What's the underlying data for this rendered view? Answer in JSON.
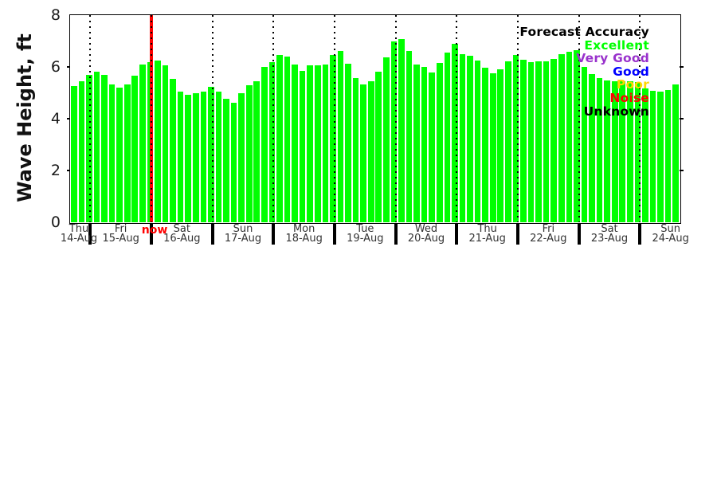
{
  "chart_data": {
    "type": "bar",
    "title": "",
    "ylabel": "Wave Height, ft",
    "xlabel": "",
    "ylim": [
      0,
      8
    ],
    "yticks": [
      0,
      2,
      4,
      6,
      8
    ],
    "grid": "vertical-dotted-day-boundaries",
    "bar_color": "#00ff00",
    "values": [
      5.25,
      5.45,
      5.7,
      5.82,
      5.7,
      5.32,
      5.2,
      5.32,
      5.66,
      6.1,
      6.2,
      6.24,
      6.07,
      5.54,
      5.05,
      4.92,
      5.0,
      5.06,
      5.23,
      5.05,
      4.77,
      4.62,
      4.97,
      5.29,
      5.45,
      6.0,
      6.2,
      6.45,
      6.41,
      6.1,
      5.85,
      6.05,
      6.05,
      6.08,
      6.45,
      6.61,
      6.13,
      5.58,
      5.33,
      5.45,
      5.82,
      6.38,
      7.0,
      7.07,
      6.61,
      6.1,
      6.01,
      5.8,
      6.15,
      6.54,
      6.88,
      6.49,
      6.44,
      6.26,
      5.97,
      5.75,
      5.9,
      6.21,
      6.45,
      6.28,
      6.17,
      6.21,
      6.23,
      6.3,
      6.5,
      6.59,
      6.64,
      5.99,
      5.71,
      5.58,
      5.49,
      5.46,
      5.44,
      5.46,
      5.41,
      5.17,
      5.08,
      5.05,
      5.1,
      5.33
    ],
    "x_day_labels": [
      {
        "day": "Thu",
        "date": "14-Aug"
      },
      {
        "day": "Fri",
        "date": "15-Aug"
      },
      {
        "day": "Sat",
        "date": "16-Aug"
      },
      {
        "day": "Sun",
        "date": "17-Aug"
      },
      {
        "day": "Mon",
        "date": "18-Aug"
      },
      {
        "day": "Tue",
        "date": "19-Aug"
      },
      {
        "day": "Wed",
        "date": "20-Aug"
      },
      {
        "day": "Thu",
        "date": "21-Aug"
      },
      {
        "day": "Fri",
        "date": "22-Aug"
      },
      {
        "day": "Sat",
        "date": "23-Aug"
      },
      {
        "day": "Sun",
        "date": "24-Aug"
      }
    ],
    "now_label": "now",
    "now_color": "#ff0000",
    "now_position": "boundary between 15-Aug and 16-Aug",
    "legend": {
      "title": "Forecast Accuracy",
      "title_color": "#000000",
      "position": "top-right",
      "entries": [
        {
          "label": "Excellent",
          "color": "#00ff00"
        },
        {
          "label": "Very Good",
          "color": "#9932cc"
        },
        {
          "label": "Good",
          "color": "#0000ff"
        },
        {
          "label": "Poor",
          "color": "#ffd700"
        },
        {
          "label": "Noise",
          "color": "#ff0000"
        },
        {
          "label": "Unknown",
          "color": "#000000"
        }
      ]
    }
  }
}
